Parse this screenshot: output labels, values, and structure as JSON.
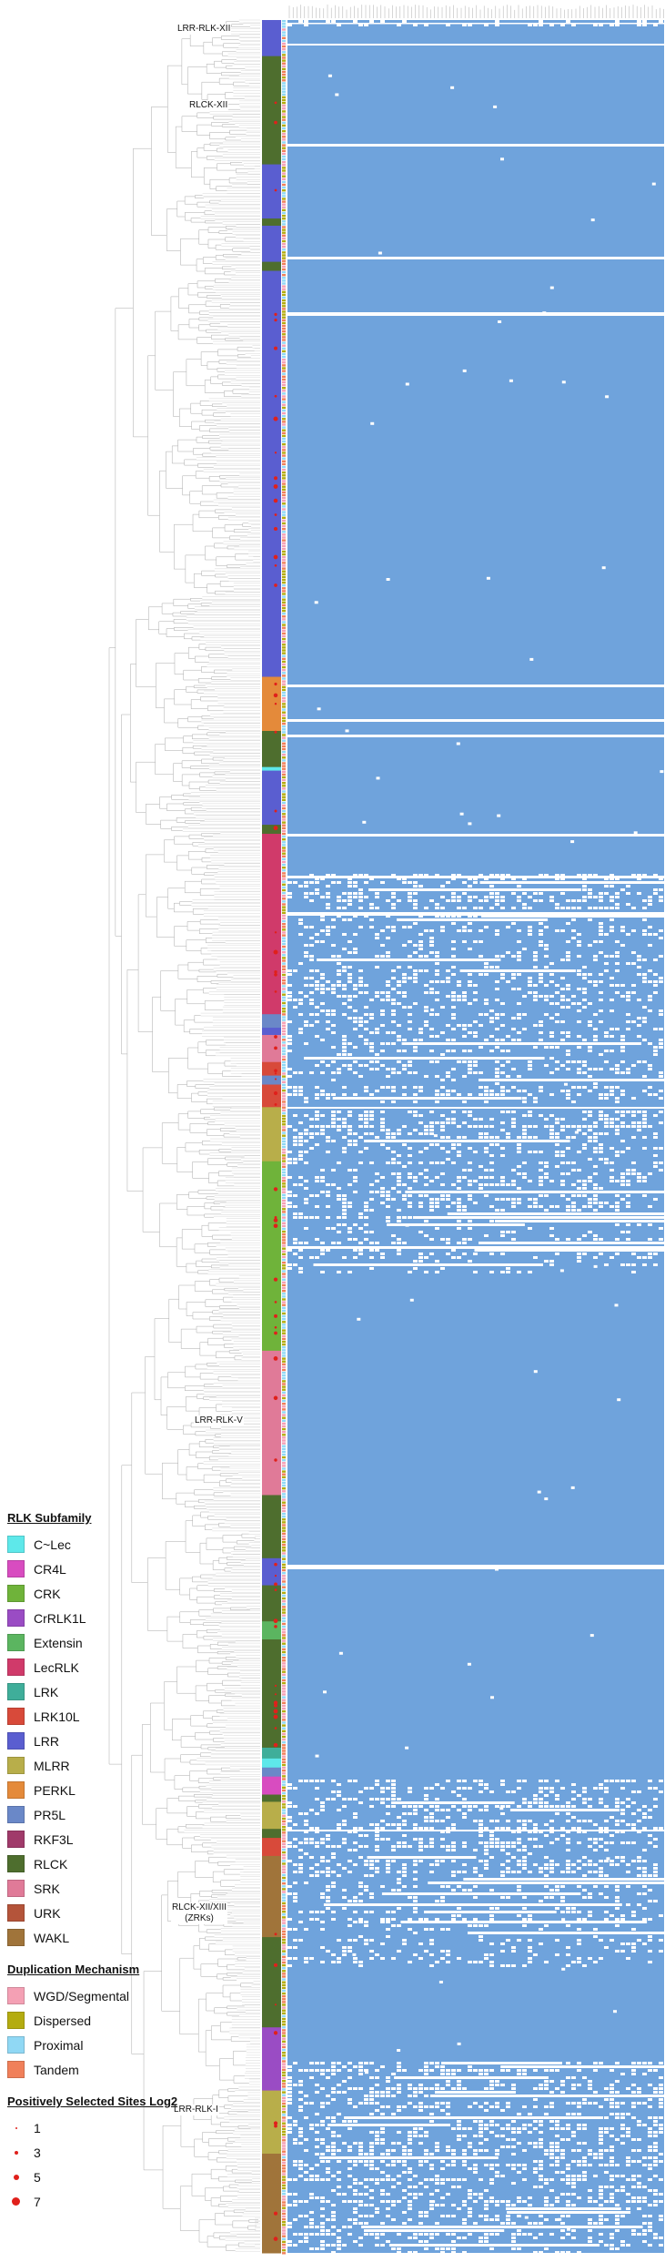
{
  "clade_labels": [
    {
      "key": "lrr_rlk_xii",
      "text": "LRR-RLK-XII"
    },
    {
      "key": "rlck_xii",
      "text": "RLCK-XII"
    },
    {
      "key": "lrr_rlk_v",
      "text": "LRR-RLK-V"
    },
    {
      "key": "rlck_xii_xiii",
      "text": "RLCK-XII/XIII"
    },
    {
      "key": "rlck_xii_xiii_sub",
      "text": "(ZRKs)"
    },
    {
      "key": "lrr_rlk_i",
      "text": "LRR-RLK-I"
    }
  ],
  "legend": {
    "subfamily": {
      "title": "RLK Subfamily",
      "items": [
        {
          "label": "C~Lec",
          "color": "#5ee8ea"
        },
        {
          "label": "CR4L",
          "color": "#d84cc0"
        },
        {
          "label": "CRK",
          "color": "#6fb33a"
        },
        {
          "label": "CrRLK1L",
          "color": "#9a4cc4"
        },
        {
          "label": "Extensin",
          "color": "#5bb560"
        },
        {
          "label": "LecRLK",
          "color": "#d03a6a"
        },
        {
          "label": "LRK",
          "color": "#3fae9a"
        },
        {
          "label": "LRK10L",
          "color": "#d84a3a"
        },
        {
          "label": "LRR",
          "color": "#5a5ed0"
        },
        {
          "label": "MLRR",
          "color": "#b8ae4a"
        },
        {
          "label": "PERKL",
          "color": "#e48a3a"
        },
        {
          "label": "PR5L",
          "color": "#6a88c8"
        },
        {
          "label": "RKF3L",
          "color": "#a03a6a"
        },
        {
          "label": "RLCK",
          "color": "#4e6e2e"
        },
        {
          "label": "SRK",
          "color": "#e07a98"
        },
        {
          "label": "URK",
          "color": "#b4543a"
        },
        {
          "label": "WAKL",
          "color": "#a0743a"
        }
      ]
    },
    "duplication": {
      "title": "Duplication Mechanism",
      "items": [
        {
          "label": "WGD/Segmental",
          "color": "#f4a0b4"
        },
        {
          "label": "Dispersed",
          "color": "#b4ac10"
        },
        {
          "label": "Proximal",
          "color": "#90d8f4"
        },
        {
          "label": "Tandem",
          "color": "#f0805a"
        }
      ]
    },
    "selected_sites": {
      "title": "Positively Selected Sites Log2",
      "items": [
        {
          "label": "1",
          "size": 2
        },
        {
          "label": "3",
          "size": 4
        },
        {
          "label": "5",
          "size": 6
        },
        {
          "label": "7",
          "size": 9
        }
      ]
    }
  },
  "heatmap": {
    "fill_color": "#6fa3dc",
    "gap_color": "#ffffff"
  },
  "subfamily_strip": [
    [
      "LRR",
      40
    ],
    [
      "RLCK",
      120
    ],
    [
      "LRR",
      60
    ],
    [
      "RLCK",
      8
    ],
    [
      "LRR",
      40
    ],
    [
      "RLCK",
      10
    ],
    [
      "LRR",
      450
    ],
    [
      "PERKL",
      60
    ],
    [
      "RLCK",
      40
    ],
    [
      "C~Lec",
      4
    ],
    [
      "LRR",
      60
    ],
    [
      "RLCK",
      10
    ],
    [
      "LecRLK",
      200
    ],
    [
      "PR5L",
      15
    ],
    [
      "LRR",
      8
    ],
    [
      "SRK",
      30
    ],
    [
      "LRK10L",
      15
    ],
    [
      "PR5L",
      10
    ],
    [
      "LRK10L",
      25
    ],
    [
      "MLRR",
      60
    ],
    [
      "CRK",
      210
    ],
    [
      "SRK",
      160
    ],
    [
      "RLCK",
      70
    ],
    [
      "LRR",
      30
    ],
    [
      "RLCK",
      40
    ],
    [
      "Extensin",
      20
    ],
    [
      "RLCK",
      120
    ],
    [
      "LRK",
      12
    ],
    [
      "C~Lec",
      10
    ],
    [
      "PR5L",
      10
    ],
    [
      "CR4L",
      20
    ],
    [
      "RLCK",
      8
    ],
    [
      "MLRR",
      30
    ],
    [
      "RLCK",
      10
    ],
    [
      "LRK10L",
      20
    ],
    [
      "WAKL",
      90
    ],
    [
      "RLCK",
      100
    ],
    [
      "CrRLK1L",
      70
    ],
    [
      "MLRR",
      70
    ],
    [
      "WAKL",
      110
    ]
  ]
}
